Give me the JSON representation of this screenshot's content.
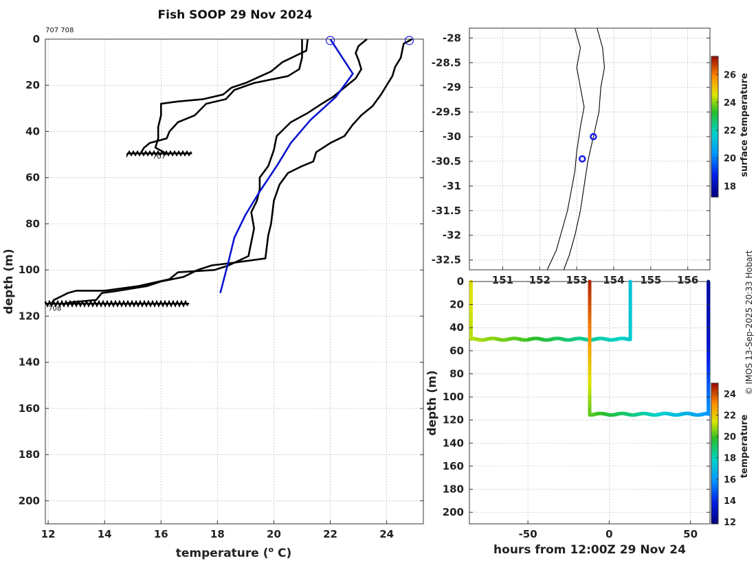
{
  "page": {
    "title": "Fish SOOP 29 Nov 2024",
    "profile_ids": "707 708",
    "credit": "© IMOS 13-Sep-2025 20:33 Hobart",
    "colors": {
      "profile": "#000000",
      "model": "#0a14d0",
      "marker": "#1a1ae6"
    }
  },
  "chart_data": [
    {
      "id": "profiles",
      "type": "line",
      "title": "Fish SOOP 29 Nov 2024",
      "xlabel": "temperature (",
      "xlabel_sup": "o",
      "xlabel_tail": " C)",
      "ylabel": "depth (m)",
      "xlim": [
        11.9,
        25.3
      ],
      "ylim": [
        210,
        0
      ],
      "xticks": [
        12,
        14,
        16,
        18,
        20,
        22,
        24
      ],
      "yticks": [
        0,
        20,
        40,
        60,
        80,
        100,
        120,
        140,
        160,
        180,
        200
      ],
      "grid": true,
      "profile_labels": [
        {
          "text": "707",
          "x": 15.7,
          "y": 50.5
        },
        {
          "text": "708",
          "x": 12.0,
          "y": 116.5
        }
      ],
      "series": [
        {
          "style": "black",
          "points": [
            [
              21.2,
              0
            ],
            [
              21.15,
              5
            ],
            [
              20.3,
              10
            ],
            [
              19.9,
              14
            ],
            [
              19.0,
              19
            ],
            [
              18.5,
              21
            ],
            [
              18.2,
              24
            ],
            [
              17.5,
              26
            ],
            [
              16.6,
              27
            ],
            [
              16.0,
              28
            ],
            [
              16.0,
              33
            ],
            [
              15.9,
              38
            ],
            [
              15.9,
              43
            ],
            [
              15.8,
              47
            ],
            [
              16.1,
              49
            ],
            [
              16.2,
              50
            ]
          ]
        },
        {
          "style": "black",
          "points": [
            [
              23.3,
              0
            ],
            [
              23.0,
              3
            ],
            [
              22.9,
              6
            ],
            [
              23.0,
              9
            ],
            [
              23.1,
              13
            ],
            [
              22.9,
              17
            ],
            [
              22.6,
              20
            ],
            [
              22.1,
              25
            ],
            [
              21.7,
              28
            ],
            [
              21.2,
              32
            ],
            [
              20.6,
              36
            ],
            [
              20.1,
              42
            ],
            [
              20.0,
              48
            ],
            [
              19.8,
              55
            ],
            [
              19.5,
              60
            ],
            [
              19.5,
              65
            ],
            [
              19.4,
              70
            ],
            [
              19.2,
              75
            ],
            [
              19.3,
              82
            ],
            [
              19.2,
              88
            ],
            [
              19.1,
              94
            ],
            [
              18.4,
              98
            ],
            [
              17.9,
              100
            ],
            [
              16.6,
              101
            ],
            [
              16.3,
              104
            ],
            [
              15.2,
              107
            ],
            [
              14.0,
              109
            ],
            [
              13.0,
              109
            ],
            [
              12.7,
              110
            ],
            [
              12.2,
              113
            ],
            [
              12.1,
              115
            ]
          ]
        },
        {
          "style": "black",
          "points": [
            [
              24.9,
              0
            ],
            [
              24.6,
              2
            ],
            [
              24.5,
              8
            ],
            [
              24.3,
              12
            ],
            [
              24.2,
              16
            ],
            [
              24.0,
              20
            ],
            [
              23.8,
              24
            ],
            [
              23.5,
              29
            ],
            [
              23.1,
              33
            ],
            [
              22.8,
              37
            ],
            [
              22.5,
              42
            ],
            [
              22.0,
              45
            ],
            [
              21.5,
              49
            ],
            [
              21.4,
              53
            ],
            [
              21.0,
              55
            ],
            [
              20.5,
              58
            ],
            [
              20.2,
              63
            ],
            [
              20.0,
              70
            ],
            [
              19.9,
              80
            ],
            [
              19.8,
              85
            ],
            [
              19.7,
              95
            ],
            [
              19.1,
              96
            ],
            [
              18.5,
              97
            ],
            [
              17.8,
              98
            ],
            [
              17.3,
              100
            ],
            [
              16.8,
              103
            ],
            [
              16.0,
              105
            ],
            [
              15.5,
              107
            ],
            [
              14.5,
              109
            ],
            [
              13.9,
              110
            ],
            [
              13.7,
              113
            ],
            [
              12.8,
              114
            ],
            [
              12.5,
              115
            ]
          ]
        },
        {
          "style": "black",
          "points": [
            [
              21.0,
              0
            ],
            [
              21.0,
              8
            ],
            [
              20.9,
              13
            ],
            [
              20.5,
              16
            ],
            [
              19.3,
              19
            ],
            [
              18.6,
              22
            ],
            [
              18.3,
              26
            ],
            [
              17.6,
              28
            ],
            [
              17.2,
              33
            ],
            [
              16.6,
              36
            ],
            [
              16.3,
              40
            ],
            [
              16.2,
              43
            ],
            [
              15.6,
              45
            ],
            [
              15.4,
              47
            ],
            [
              15.3,
              49
            ],
            [
              15.4,
              50
            ]
          ]
        },
        {
          "style": "blue",
          "points": [
            [
              22.0,
              0
            ],
            [
              22.8,
              15
            ],
            [
              22.2,
              25
            ],
            [
              21.3,
              35
            ],
            [
              20.6,
              45
            ],
            [
              20.1,
              55
            ],
            [
              19.5,
              66
            ],
            [
              19.0,
              76
            ],
            [
              18.6,
              86
            ],
            [
              18.4,
              96
            ],
            [
              18.1,
              110
            ]
          ]
        }
      ],
      "markers": [
        {
          "x": 22.0,
          "y": 0
        },
        {
          "x": 24.8,
          "y": 0
        }
      ],
      "noise_bands": [
        {
          "xmin": 14.8,
          "xmax": 17.1,
          "y": 49.5,
          "h": 1.6
        },
        {
          "xmin": 11.9,
          "xmax": 17.0,
          "y": 114.6,
          "h": 2.0
        }
      ]
    },
    {
      "id": "map",
      "type": "scatter",
      "xlim": [
        150.1,
        156.6
      ],
      "ylim": [
        -32.7,
        -27.8
      ],
      "xticks": [
        151,
        152,
        153,
        154,
        155,
        156
      ],
      "yticks": [
        -28,
        -28.5,
        -29,
        -29.5,
        -30,
        -30.5,
        -31,
        -31.5,
        -32,
        -32.5
      ],
      "grid": true,
      "coastline": [
        [
          152.95,
          -27.8
        ],
        [
          153.1,
          -28.2
        ],
        [
          153.0,
          -28.6
        ],
        [
          153.1,
          -29.0
        ],
        [
          153.2,
          -29.4
        ],
        [
          153.1,
          -29.8
        ],
        [
          153.0,
          -30.3
        ],
        [
          152.95,
          -30.7
        ],
        [
          152.85,
          -31.1
        ],
        [
          152.75,
          -31.5
        ],
        [
          152.6,
          -31.9
        ],
        [
          152.45,
          -32.3
        ],
        [
          152.2,
          -32.7
        ]
      ],
      "shelf": [
        [
          153.55,
          -27.8
        ],
        [
          153.7,
          -28.2
        ],
        [
          153.75,
          -28.6
        ],
        [
          153.65,
          -29.0
        ],
        [
          153.6,
          -29.5
        ],
        [
          153.45,
          -30.0
        ],
        [
          153.3,
          -30.5
        ],
        [
          153.2,
          -31.0
        ],
        [
          153.1,
          -31.5
        ],
        [
          152.95,
          -32.0
        ],
        [
          152.8,
          -32.4
        ],
        [
          152.65,
          -32.7
        ]
      ],
      "points": [
        {
          "lon": 153.45,
          "lat": -30.0
        },
        {
          "lon": 153.15,
          "lat": -30.45
        }
      ],
      "colorbar": {
        "label": "surface temperature",
        "min": 17.2,
        "max": 27.3,
        "ticks": [
          18,
          20,
          22,
          24,
          26
        ]
      }
    },
    {
      "id": "timeseries",
      "type": "heatmap",
      "xlabel": "hours from 12:00Z 29 Nov 24",
      "ylabel": "depth (m)",
      "xlim": [
        -86,
        62
      ],
      "ylim": [
        210,
        0
      ],
      "xticks": [
        -50,
        0,
        50
      ],
      "yticks": [
        0,
        20,
        40,
        60,
        80,
        100,
        120,
        140,
        160,
        180,
        200
      ],
      "grid": true,
      "tracks": [
        {
          "path": [
            [
              -85,
              0
            ],
            [
              -85,
              50
            ],
            [
              13,
              50
            ],
            [
              13,
              0
            ]
          ],
          "temps": [
            21.5,
            21.0,
            20.0,
            18.5,
            17.5,
            17.2
          ]
        },
        {
          "path": [
            [
              -12,
              0
            ],
            [
              -12,
              115
            ],
            [
              61,
              115
            ],
            [
              61,
              0
            ]
          ],
          "temps": [
            24.5,
            23.0,
            21.0,
            19.0,
            17.0,
            15.0,
            13.0,
            12.5
          ]
        }
      ],
      "colorbar": {
        "label": "temperature",
        "min": 11.8,
        "max": 25.0,
        "ticks": [
          12,
          14,
          16,
          18,
          20,
          22,
          24
        ]
      }
    }
  ]
}
